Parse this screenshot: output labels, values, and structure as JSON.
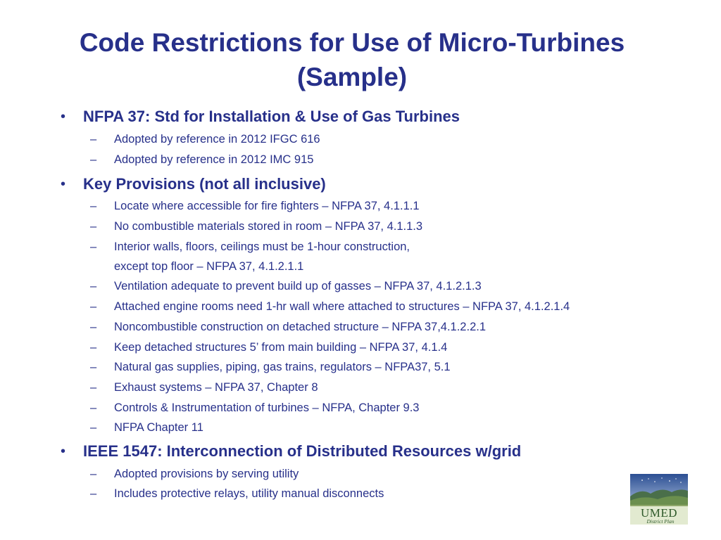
{
  "title": {
    "line1": "Code Restrictions for Use of Micro-Turbines",
    "line2": "(Sample)"
  },
  "bullet_glyph": "•",
  "dash_glyph": "–",
  "sections": [
    {
      "heading": "NFPA 37: Std for Installation & Use of Gas Turbines",
      "items": [
        "Adopted by reference in 2012 IFGC 616",
        "Adopted by reference in 2012 IMC 915"
      ]
    },
    {
      "heading": "Key Provisions (not all inclusive)",
      "items": [
        "Locate where accessible for fire fighters – NFPA 37, 4.1.1.1",
        "No combustible materials stored in room – NFPA 37, 4.1.1.3",
        "Interior walls, floors, ceilings must be 1-hour construction,",
        "except top floor – NFPA 37, 4.1.2.1.1",
        "Ventilation adequate to prevent build up of gasses – NFPA 37, 4.1.2.1.3",
        "Attached engine rooms need 1-hr wall where attached to structures – NFPA  37, 4.1.2.1.4",
        "Noncombustible construction on detached structure – NFPA 37,4.1.2.2.1",
        "Keep detached structures 5’ from main building – NFPA 37, 4.1.4",
        "Natural gas supplies, piping, gas trains, regulators – NFPA37,  5.1",
        "Exhaust systems – NFPA 37, Chapter 8",
        "Controls & Instrumentation of turbines – NFPA, Chapter 9.3",
        "NFPA Chapter 11"
      ]
    },
    {
      "heading": "IEEE 1547:  Interconnection of Distributed Resources w/grid",
      "items": [
        "Adopted provisions by serving utility",
        "Includes protective relays, utility manual disconnects"
      ]
    }
  ],
  "logo": {
    "text": "UMED",
    "subtext": "District Plan",
    "icon": "umed-district-plan-logo"
  },
  "colors": {
    "text": "#27308a",
    "background": "#ffffff"
  }
}
